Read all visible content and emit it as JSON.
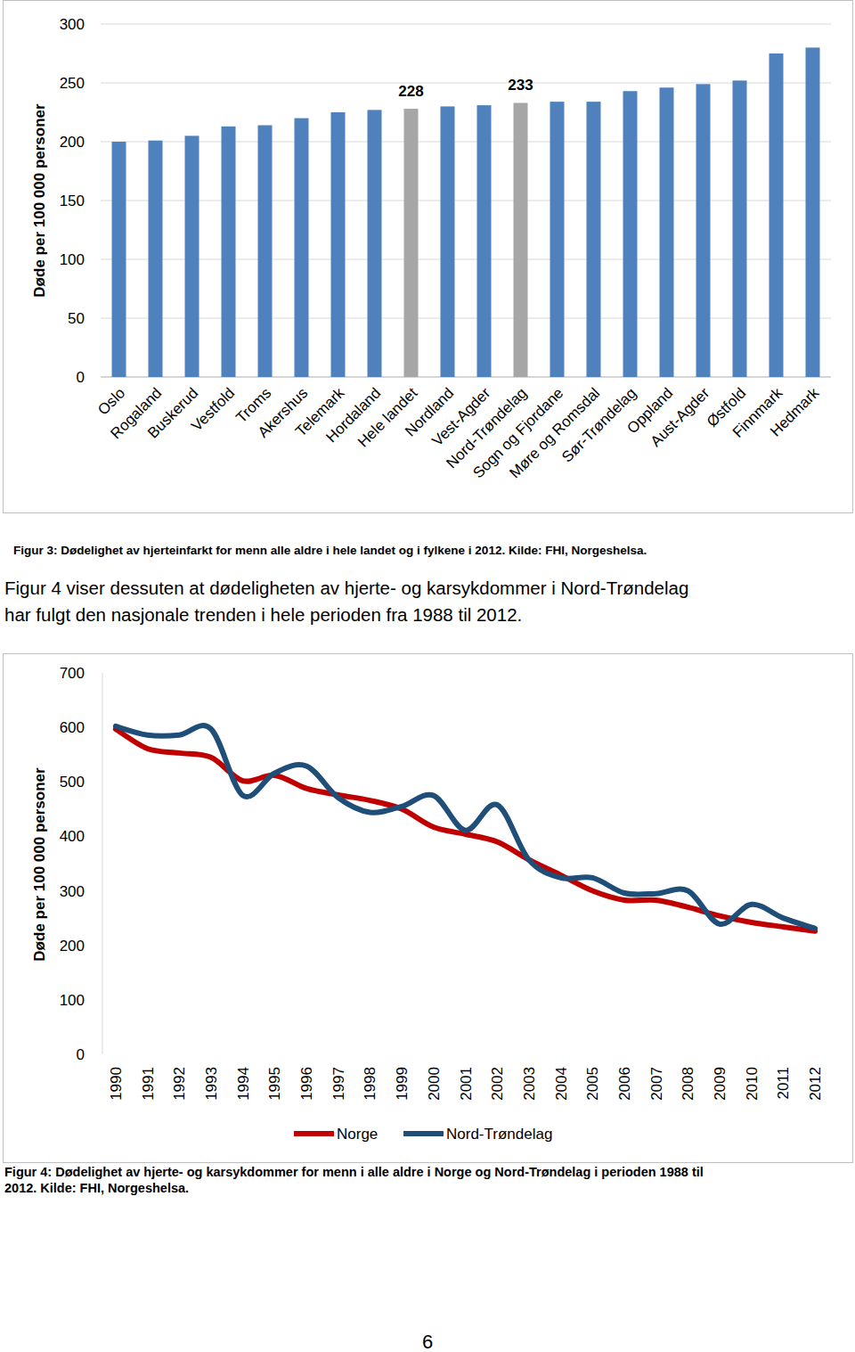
{
  "chart_data": [
    {
      "type": "bar",
      "caption": [
        "Figur 3: Dødelighet av hjerteinfarkt for menn alle aldre i hele landet og i fylkene i 2012. Kilde: FHI, Norgeshelsa."
      ],
      "y_label": "Døde per 100 000 personer",
      "categories": [
        "Oslo",
        "Rogaland",
        "Buskerud",
        "Vestfold",
        "Troms",
        "Akershus",
        "Telemark",
        "Hordaland",
        "Hele landet",
        "Nordland",
        "Vest-Agder",
        "Nord-Trøndelag",
        "Sogn og Fjordane",
        "Møre og Romsdal",
        "Sør-Trøndelag",
        "Oppland",
        "Aust-Agder",
        "Østfold",
        "Finnmark",
        "Hedmark"
      ],
      "values": [
        200,
        201,
        205,
        213,
        214,
        220,
        225,
        227,
        228,
        230,
        231,
        233,
        234,
        234,
        243,
        246,
        249,
        252,
        275,
        280
      ],
      "value_labels": [
        null,
        null,
        null,
        null,
        null,
        null,
        null,
        null,
        "228",
        null,
        null,
        "233",
        null,
        null,
        null,
        null,
        null,
        null,
        null,
        null
      ],
      "data_labels": true,
      "colors": [
        "#4f81bd",
        "#4f81bd",
        "#4f81bd",
        "#4f81bd",
        "#4f81bd",
        "#4f81bd",
        "#4f81bd",
        "#4f81bd",
        "#a6a6a6",
        "#4f81bd",
        "#4f81bd",
        "#a6a6a6",
        "#4f81bd",
        "#4f81bd",
        "#4f81bd",
        "#4f81bd",
        "#4f81bd",
        "#4f81bd",
        "#4f81bd",
        "#4f81bd"
      ],
      "ylim": [
        0,
        300
      ],
      "yticks": [
        0,
        50,
        100,
        150,
        200,
        250,
        300
      ],
      "grid": true
    },
    {
      "type": "line",
      "caption": [
        "Figur 4: Dødelighet av hjerte- og karsykdommer for menn i alle aldre i Norge og Nord-Trøndelag i perioden 1988 til",
        "2012. Kilde: FHI, Norgeshelsa."
      ],
      "y_label": "Døde per 100 000 personer",
      "categories": [
        "1990",
        "1991",
        "1992",
        "1993",
        "1994",
        "1995",
        "1996",
        "1997",
        "1998",
        "1999",
        "2000",
        "2001",
        "2002",
        "2003",
        "2004",
        "2005",
        "2006",
        "2007",
        "2008",
        "2009",
        "2010",
        "2011",
        "2012"
      ],
      "series": [
        {
          "name": "Norge",
          "color": "#c00000",
          "values": [
            597,
            561,
            553,
            545,
            502,
            512,
            488,
            476,
            466,
            450,
            417,
            404,
            390,
            357,
            329,
            300,
            283,
            283,
            270,
            254,
            242,
            234,
            226
          ]
        },
        {
          "name": "Nord-Trøndelag",
          "color": "#1f4e79",
          "values": [
            602,
            586,
            586,
            597,
            475,
            516,
            529,
            471,
            444,
            455,
            475,
            411,
            458,
            357,
            324,
            324,
            296,
            295,
            300,
            239,
            275,
            250,
            231
          ]
        }
      ],
      "line_style": "smooth",
      "legend": "bottom",
      "ylim": [
        0,
        700
      ],
      "yticks": [
        0,
        100,
        200,
        300,
        400,
        500,
        600,
        700
      ],
      "grid": false
    }
  ],
  "page": {
    "paragraph": [
      "Figur 4 viser dessuten at dødeligheten av hjerte- og karsykdommer i Nord-Trøndelag",
      "har fulgt den nasjonale trenden i hele perioden fra 1988 til 2012."
    ],
    "page_number": "6"
  }
}
